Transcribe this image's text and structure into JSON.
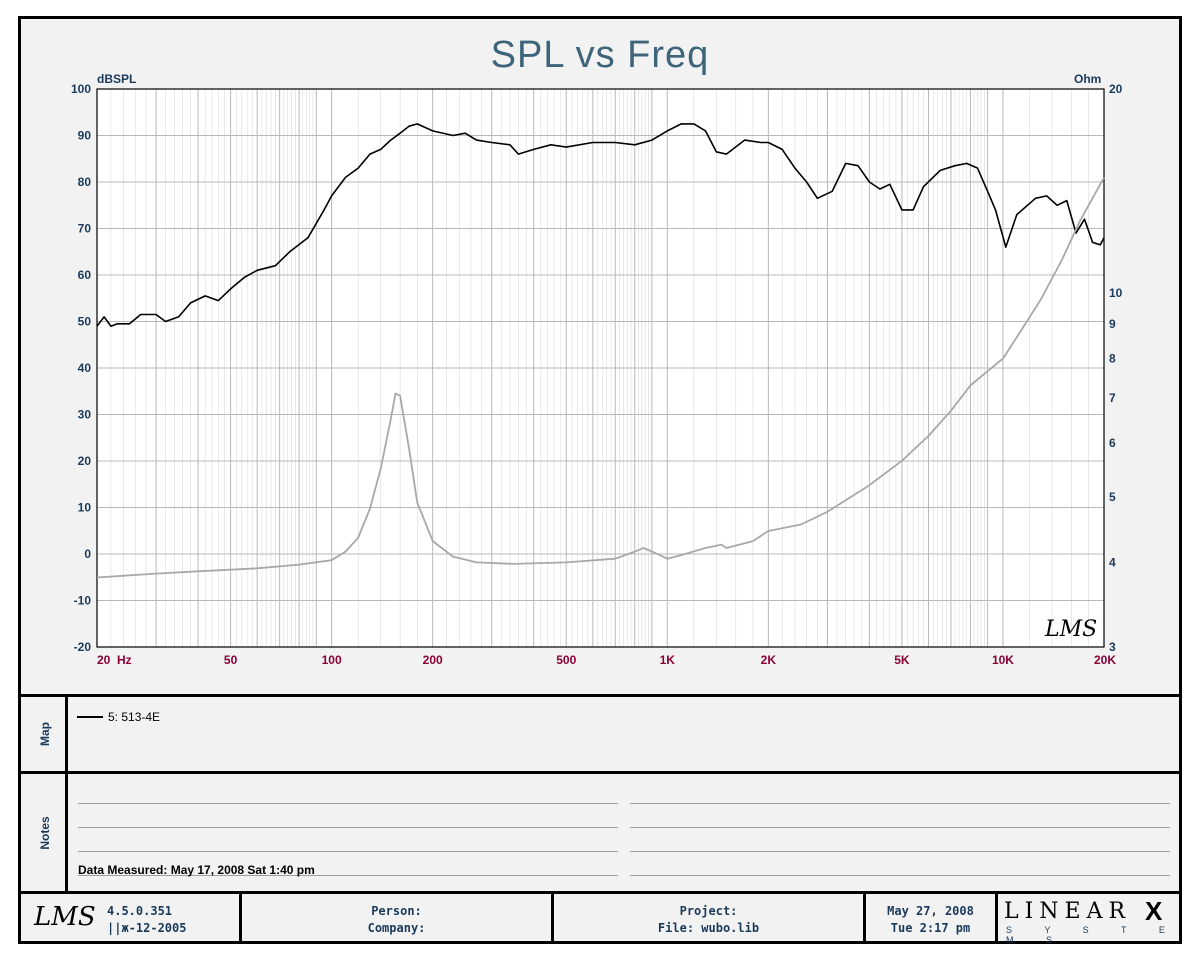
{
  "chart_data": {
    "type": "line",
    "title": "SPL vs Freq",
    "y_left_label": "dBSPL",
    "y_right_label": "Ohm",
    "ylim_left": [
      -20,
      100
    ],
    "ylim_right": [
      3,
      20
    ],
    "x_scale": "log",
    "xlim": [
      20,
      20000
    ],
    "y_left_ticks": [
      100,
      90,
      80,
      70,
      60,
      50,
      40,
      30,
      20,
      10,
      0,
      -10,
      -20
    ],
    "y_right_ticks": [
      20,
      10,
      9,
      8,
      7,
      6,
      5,
      4,
      3
    ],
    "x_ticks": [
      {
        "v": 20,
        "label": "20  Hz"
      },
      {
        "v": 50,
        "label": "50"
      },
      {
        "v": 100,
        "label": "100"
      },
      {
        "v": 200,
        "label": "200"
      },
      {
        "v": 500,
        "label": "500"
      },
      {
        "v": 1000,
        "label": "1K"
      },
      {
        "v": 2000,
        "label": "2K"
      },
      {
        "v": 5000,
        "label": "5K"
      },
      {
        "v": 10000,
        "label": "10K"
      },
      {
        "v": 20000,
        "label": "20K"
      }
    ],
    "grid": true,
    "series": [
      {
        "name": "5: 513-4E",
        "axis": "left",
        "color": "#000000",
        "points": [
          [
            20,
            49
          ],
          [
            21,
            51
          ],
          [
            22,
            49
          ],
          [
            23,
            49.5
          ],
          [
            25,
            49.5
          ],
          [
            27,
            51.5
          ],
          [
            30,
            51.5
          ],
          [
            32,
            50
          ],
          [
            35,
            51
          ],
          [
            38,
            54
          ],
          [
            42,
            55.5
          ],
          [
            46,
            54.5
          ],
          [
            50,
            57
          ],
          [
            55,
            59.5
          ],
          [
            60,
            61
          ],
          [
            68,
            62
          ],
          [
            75,
            65
          ],
          [
            85,
            68
          ],
          [
            95,
            74
          ],
          [
            100,
            77
          ],
          [
            110,
            81
          ],
          [
            120,
            83
          ],
          [
            130,
            86
          ],
          [
            140,
            87
          ],
          [
            150,
            89
          ],
          [
            160,
            90.5
          ],
          [
            170,
            92
          ],
          [
            180,
            92.5
          ],
          [
            200,
            91
          ],
          [
            230,
            90
          ],
          [
            250,
            90.5
          ],
          [
            270,
            89
          ],
          [
            300,
            88.5
          ],
          [
            340,
            88
          ],
          [
            360,
            86
          ],
          [
            400,
            87
          ],
          [
            450,
            88
          ],
          [
            500,
            87.5
          ],
          [
            600,
            88.5
          ],
          [
            700,
            88.5
          ],
          [
            800,
            88
          ],
          [
            900,
            89
          ],
          [
            1000,
            91
          ],
          [
            1100,
            92.5
          ],
          [
            1200,
            92.5
          ],
          [
            1300,
            91
          ],
          [
            1400,
            86.5
          ],
          [
            1500,
            86
          ],
          [
            1700,
            89
          ],
          [
            1900,
            88.5
          ],
          [
            2000,
            88.5
          ],
          [
            2200,
            87
          ],
          [
            2400,
            83
          ],
          [
            2600,
            80
          ],
          [
            2800,
            76.5
          ],
          [
            3100,
            78
          ],
          [
            3400,
            84
          ],
          [
            3700,
            83.5
          ],
          [
            4000,
            80
          ],
          [
            4300,
            78.5
          ],
          [
            4600,
            79.5
          ],
          [
            5000,
            74
          ],
          [
            5400,
            74
          ],
          [
            5800,
            79
          ],
          [
            6500,
            82.5
          ],
          [
            7200,
            83.5
          ],
          [
            7800,
            84
          ],
          [
            8400,
            83
          ],
          [
            9000,
            78
          ],
          [
            9500,
            74
          ],
          [
            10200,
            66
          ],
          [
            11000,
            73
          ],
          [
            12500,
            76.5
          ],
          [
            13500,
            77
          ],
          [
            14500,
            75
          ],
          [
            15500,
            76
          ],
          [
            16500,
            69
          ],
          [
            17500,
            72
          ],
          [
            18500,
            67
          ],
          [
            19500,
            66.5
          ],
          [
            20000,
            68
          ]
        ]
      },
      {
        "name": "",
        "axis": "right",
        "color": "#a8a8a8",
        "points": [
          [
            20,
            3.8
          ],
          [
            30,
            3.85
          ],
          [
            40,
            3.88
          ],
          [
            60,
            3.92
          ],
          [
            80,
            3.97
          ],
          [
            100,
            4.03
          ],
          [
            110,
            4.15
          ],
          [
            120,
            4.35
          ],
          [
            130,
            4.8
          ],
          [
            140,
            5.5
          ],
          [
            150,
            6.5
          ],
          [
            155,
            7.1
          ],
          [
            160,
            7.05
          ],
          [
            170,
            5.9
          ],
          [
            180,
            4.9
          ],
          [
            200,
            4.3
          ],
          [
            230,
            4.08
          ],
          [
            270,
            4.0
          ],
          [
            350,
            3.98
          ],
          [
            500,
            4.0
          ],
          [
            700,
            4.05
          ],
          [
            800,
            4.15
          ],
          [
            850,
            4.2
          ],
          [
            950,
            4.1
          ],
          [
            1000,
            4.05
          ],
          [
            1100,
            4.1
          ],
          [
            1300,
            4.2
          ],
          [
            1450,
            4.25
          ],
          [
            1500,
            4.2
          ],
          [
            1800,
            4.3
          ],
          [
            2000,
            4.45
          ],
          [
            2500,
            4.55
          ],
          [
            3000,
            4.75
          ],
          [
            4000,
            5.2
          ],
          [
            5000,
            5.65
          ],
          [
            6000,
            6.15
          ],
          [
            7000,
            6.7
          ],
          [
            8000,
            7.3
          ],
          [
            10000,
            8.0
          ],
          [
            11000,
            8.6
          ],
          [
            13000,
            9.8
          ],
          [
            15000,
            11.2
          ],
          [
            17000,
            12.8
          ],
          [
            20000,
            14.8
          ]
        ]
      }
    ]
  },
  "panels": {
    "map_title": "Map",
    "notes_title": "Notes",
    "map_entry": "5: 513-4E",
    "notes_text": "Data Measured: May 17, 2008  Sat  1:40 pm"
  },
  "footer": {
    "version": "4.5.0.351",
    "build_date": "||ж-12-2005",
    "person_label": "Person:",
    "company_label": "Company:",
    "project_label": "Project:",
    "file_label": "File: wubo.lib",
    "date": "May 27, 2008",
    "time": "Tue  2:17 pm",
    "brand_top": "LINEAR",
    "brand_x": "X",
    "brand_bottom": "S Y S T E M S",
    "lms_logo": "LMS"
  },
  "colors": {
    "title": "#3d6479",
    "axis_label": "#1a3a5a",
    "x_tick_label": "#8b0036",
    "grid": "#b8b8b8"
  }
}
